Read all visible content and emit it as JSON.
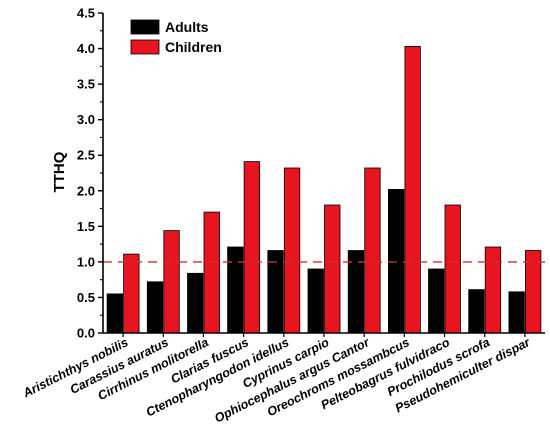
{
  "chart_data": {
    "type": "bar",
    "title": "",
    "xlabel": "",
    "ylabel": "TTHQ",
    "ylim": [
      0,
      4.5
    ],
    "yticks": [
      "0.0",
      "0.5",
      "1.0",
      "1.5",
      "2.0",
      "2.5",
      "3.0",
      "3.5",
      "4.0",
      "4.5"
    ],
    "grid": false,
    "legend_position": "top-left",
    "reference_line": {
      "y": 1.0,
      "style": "dashed",
      "color": "#c0392b"
    },
    "categories": [
      "Aristichthys nobilis",
      "Carassius auratus",
      "Cirrhinus molitorella",
      "Clarias fuscus",
      "Ctenopharyngodon idellus",
      "Cyprinus carpio",
      "Ophiocephalus argus Cantor",
      "Oreochroms mossambcus",
      "Pelteobagrus fulvidraco",
      "Prochilodus scrofa",
      "Pseudohemiculter dispar"
    ],
    "series": [
      {
        "name": "Adults",
        "color": "#000000",
        "values": [
          0.55,
          0.72,
          0.84,
          1.21,
          1.16,
          0.9,
          1.16,
          2.02,
          0.9,
          0.61,
          0.58
        ]
      },
      {
        "name": "Children",
        "color": "#e8141f",
        "values": [
          1.11,
          1.44,
          1.7,
          2.41,
          2.32,
          1.8,
          2.32,
          4.03,
          1.8,
          1.21,
          1.16
        ]
      }
    ]
  }
}
